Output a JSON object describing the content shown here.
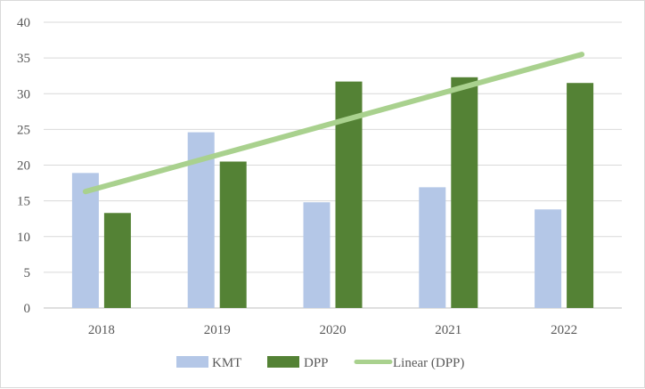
{
  "chart_data": {
    "type": "bar",
    "title": "",
    "xlabel": "",
    "ylabel": "",
    "categories": [
      "2018",
      "2019",
      "2020",
      "2021",
      "2022"
    ],
    "series": [
      {
        "name": "KMT",
        "color": "#b4c7e7",
        "values": [
          18.9,
          24.6,
          14.8,
          16.9,
          13.8
        ]
      },
      {
        "name": "DPP",
        "color": "#548235",
        "values": [
          13.3,
          20.5,
          31.7,
          32.3,
          31.5
        ]
      }
    ],
    "trendline": {
      "name": "Linear (DPP)",
      "color": "#a9d18e",
      "of_series": "DPP",
      "start": 16.3,
      "end": 35.5
    },
    "ylim": [
      0,
      40
    ],
    "yticks": [
      "0",
      "5",
      "10",
      "15",
      "20",
      "25",
      "30",
      "35",
      "40"
    ],
    "grid": true,
    "legend": "bottom"
  }
}
